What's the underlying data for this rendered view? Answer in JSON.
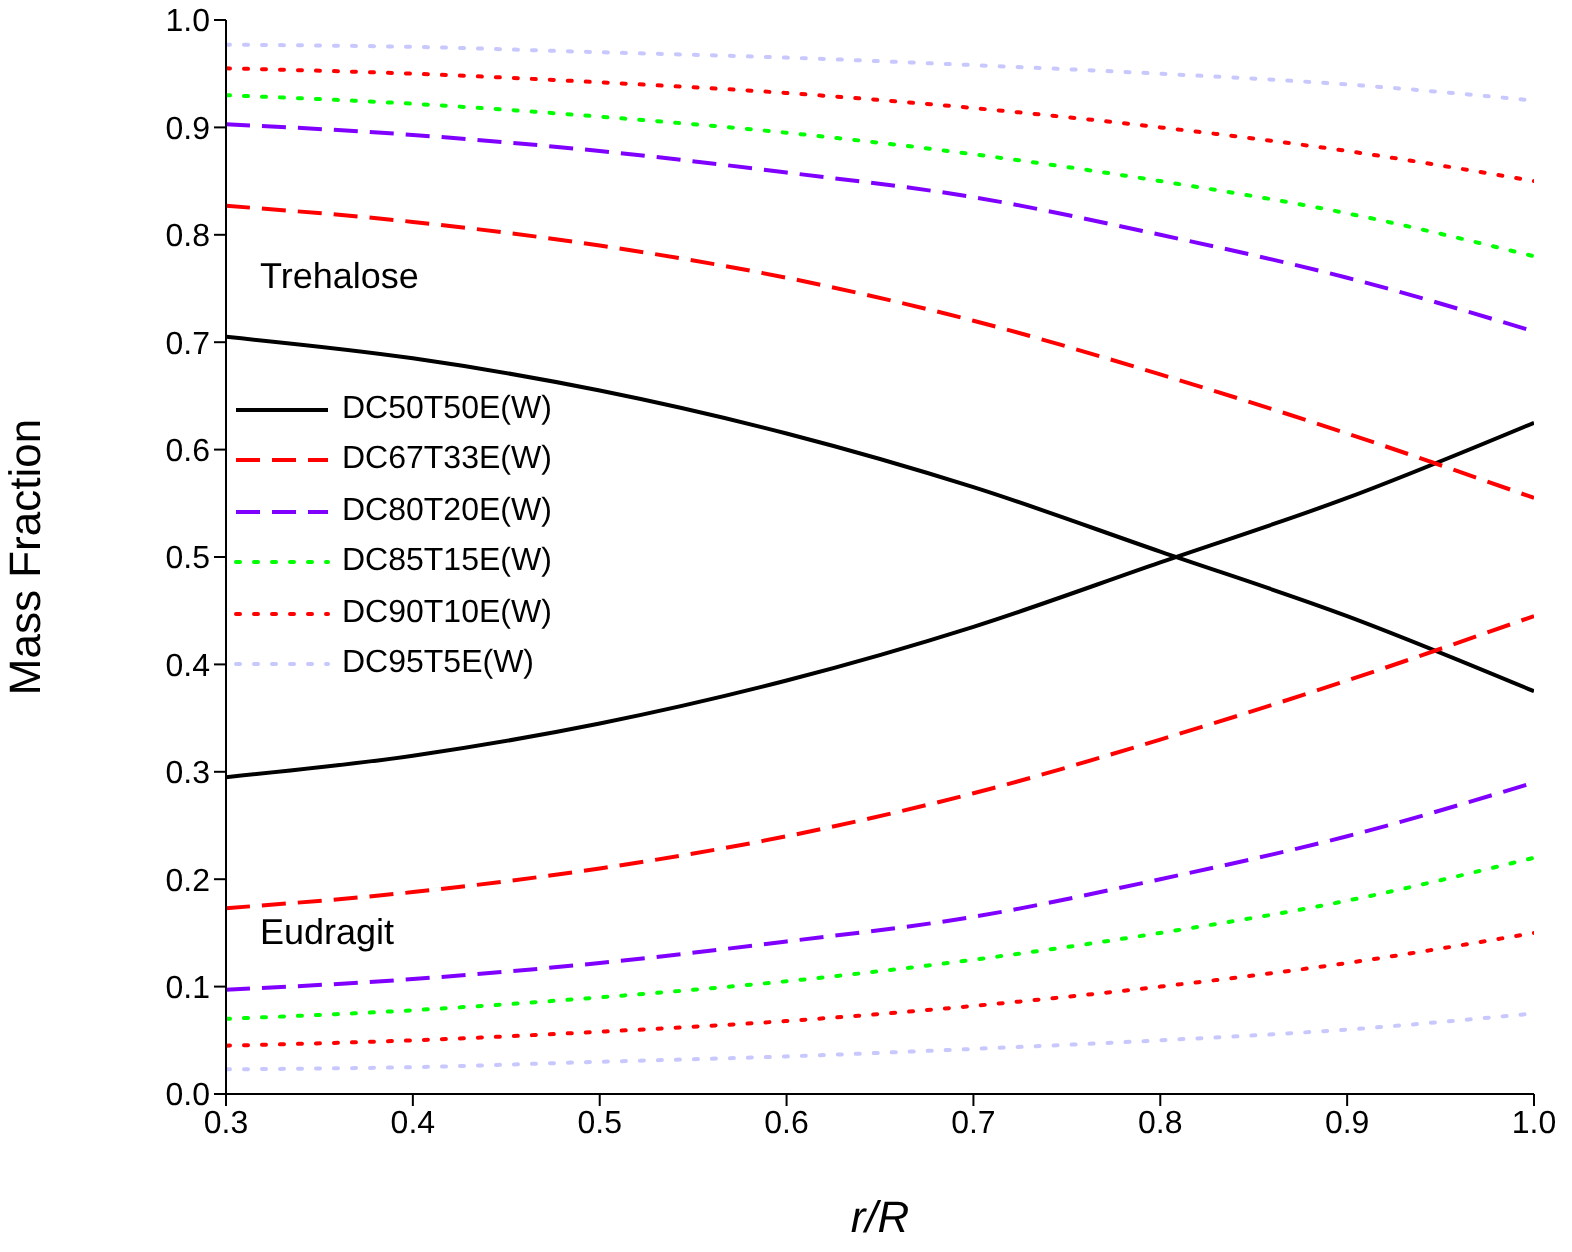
{
  "chart_data": {
    "type": "line",
    "xlabel": "r/R",
    "ylabel": "Mass Fraction",
    "x": [
      0.3,
      0.4,
      0.5,
      0.6,
      0.7,
      0.8,
      0.9,
      1.0
    ],
    "xlim": [
      0.3,
      1.0
    ],
    "xticks": [
      0.3,
      0.4,
      0.5,
      0.6,
      0.7,
      0.8,
      0.9,
      {
        "value": 1.0,
        "label": "1.0"
      }
    ],
    "ylim": [
      0.0,
      1.0
    ],
    "yticks": [
      {
        "value": 0.0,
        "label": "0.0"
      },
      0.1,
      0.2,
      0.3,
      0.4,
      0.5,
      0.6,
      0.7,
      0.8,
      0.9,
      {
        "value": 1.0,
        "label": "1.0"
      }
    ],
    "legend": "left",
    "marker": "none",
    "annotations": [
      "Trehalose",
      "Eudragit"
    ],
    "series": [
      {
        "name": "DC50T50E(W)",
        "color": "#000000",
        "line_style": "solid",
        "values": [
          0.705,
          0.685,
          0.655,
          0.615,
          0.565,
          0.505,
          0.445,
          0.375
        ]
      },
      {
        "color": "#000000",
        "line_style": "solid",
        "values": [
          0.295,
          0.315,
          0.345,
          0.385,
          0.435,
          0.495,
          0.555,
          0.625
        ]
      },
      {
        "name": "DC67T33E(W)",
        "color": "#ff0000",
        "line_style": "dashed",
        "values": [
          0.827,
          0.812,
          0.79,
          0.76,
          0.72,
          0.67,
          0.615,
          0.555
        ]
      },
      {
        "color": "#ff0000",
        "line_style": "dashed",
        "values": [
          0.173,
          0.188,
          0.21,
          0.24,
          0.28,
          0.33,
          0.385,
          0.445
        ]
      },
      {
        "name": "DC80T20E(W)",
        "color": "#8000ff",
        "line_style": "dashed",
        "values": [
          0.903,
          0.893,
          0.878,
          0.858,
          0.835,
          0.8,
          0.76,
          0.71
        ]
      },
      {
        "color": "#8000ff",
        "line_style": "dashed",
        "values": [
          0.097,
          0.107,
          0.122,
          0.142,
          0.165,
          0.2,
          0.24,
          0.29
        ]
      },
      {
        "name": "DC85T15E(W)",
        "color": "#00ff00",
        "line_style": "dotted",
        "values": [
          0.93,
          0.922,
          0.91,
          0.895,
          0.875,
          0.85,
          0.82,
          0.78
        ]
      },
      {
        "color": "#00ff00",
        "line_style": "dotted",
        "values": [
          0.07,
          0.078,
          0.09,
          0.105,
          0.125,
          0.15,
          0.18,
          0.22
        ]
      },
      {
        "name": "DC90T10E(W)",
        "color": "#ff0000",
        "line_style": "dotted",
        "values": [
          0.955,
          0.95,
          0.942,
          0.932,
          0.918,
          0.9,
          0.878,
          0.85
        ]
      },
      {
        "color": "#ff0000",
        "line_style": "dotted",
        "values": [
          0.045,
          0.05,
          0.058,
          0.068,
          0.082,
          0.1,
          0.122,
          0.15
        ]
      },
      {
        "name": "DC95T5E(W)",
        "color": "#c8c8ff",
        "line_style": "dotted",
        "values": [
          0.977,
          0.975,
          0.97,
          0.965,
          0.958,
          0.95,
          0.94,
          0.925
        ]
      },
      {
        "color": "#c8c8ff",
        "line_style": "dotted",
        "values": [
          0.023,
          0.025,
          0.03,
          0.035,
          0.042,
          0.05,
          0.06,
          0.075
        ]
      }
    ]
  }
}
